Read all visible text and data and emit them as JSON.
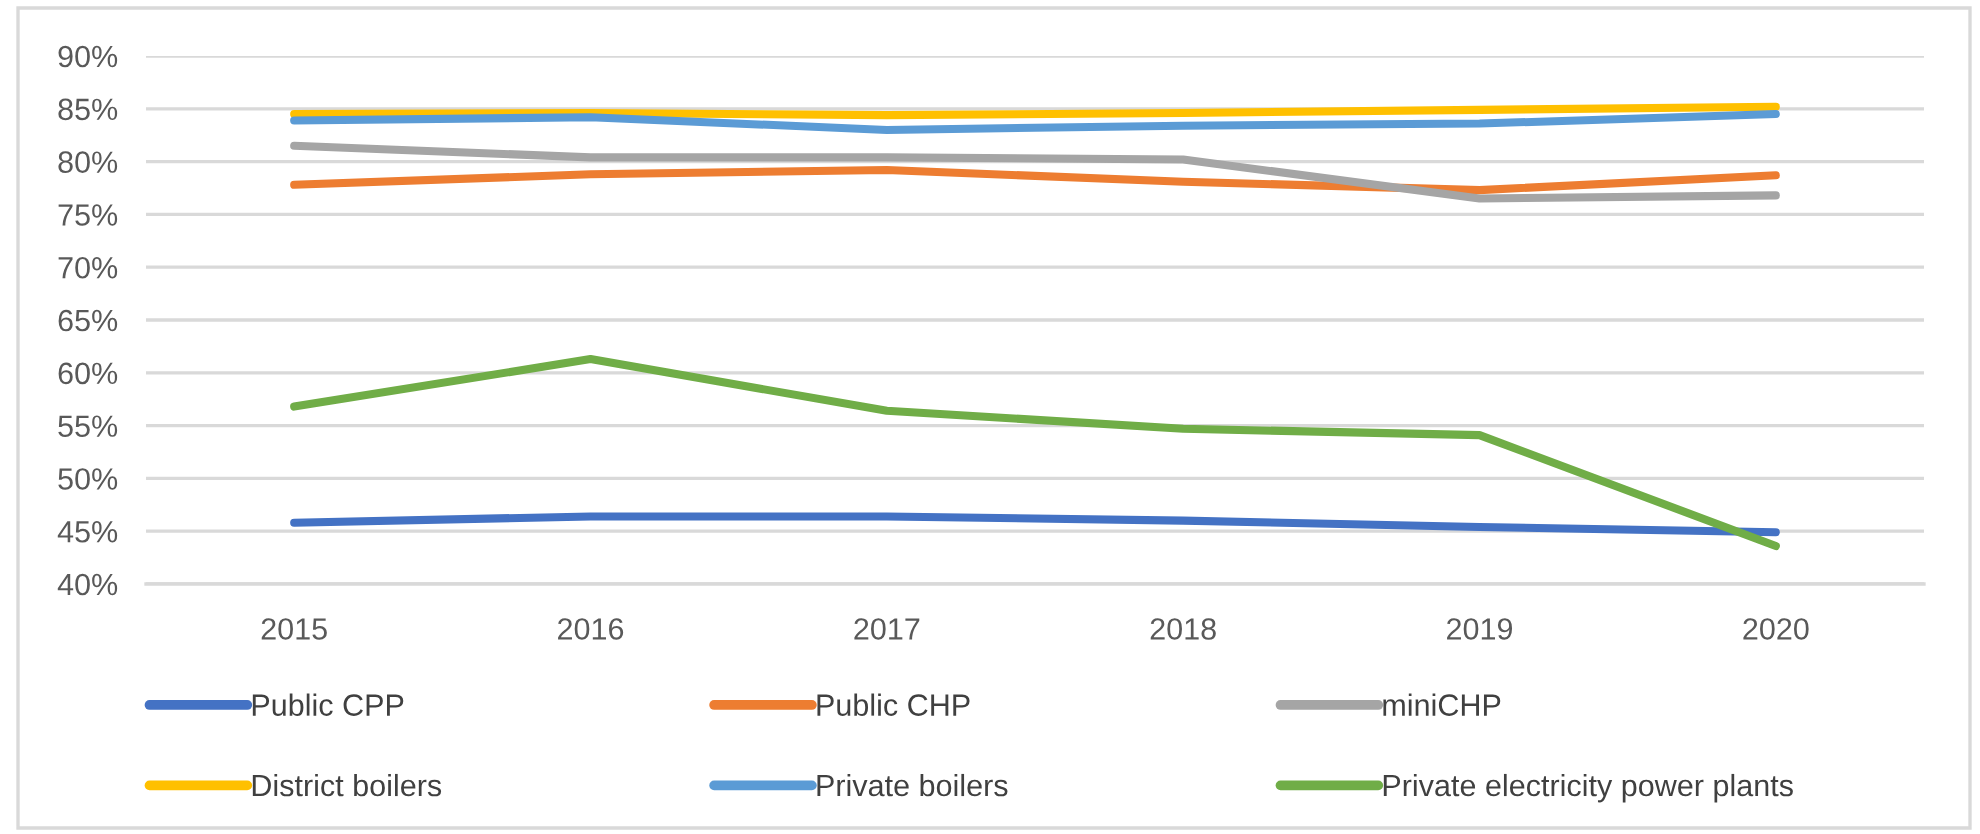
{
  "chart_data": {
    "type": "line",
    "categories": [
      "2015",
      "2016",
      "2017",
      "2018",
      "2019",
      "2020"
    ],
    "series": [
      {
        "name": "Public CPP",
        "color": "#4472c4",
        "values": [
          45.8,
          46.4,
          46.4,
          46.0,
          45.4,
          44.9
        ]
      },
      {
        "name": "Public CHP",
        "color": "#ed7d31",
        "values": [
          77.8,
          78.8,
          79.2,
          78.1,
          77.3,
          78.7
        ]
      },
      {
        "name": "miniCHP",
        "color": "#a5a5a5",
        "values": [
          81.5,
          80.4,
          80.4,
          80.2,
          76.5,
          76.8
        ]
      },
      {
        "name": "District boilers",
        "color": "#ffc000",
        "values": [
          84.5,
          84.6,
          84.4,
          84.6,
          84.9,
          85.2
        ]
      },
      {
        "name": "Private boilers",
        "color": "#5b9bd5",
        "values": [
          83.9,
          84.2,
          83.0,
          83.4,
          83.6,
          84.5
        ]
      },
      {
        "name": "Private electricity power plants",
        "color": "#70ad47",
        "values": [
          56.8,
          61.3,
          56.4,
          54.7,
          54.1,
          43.6
        ]
      }
    ],
    "ylim": [
      40,
      90
    ],
    "yticks": [
      {
        "value": 40,
        "label": "40%"
      },
      {
        "value": 45,
        "label": "45%"
      },
      {
        "value": 50,
        "label": "50%"
      },
      {
        "value": 55,
        "label": "55%"
      },
      {
        "value": 60,
        "label": "60%"
      },
      {
        "value": 65,
        "label": "65%"
      },
      {
        "value": 70,
        "label": "70%"
      },
      {
        "value": 75,
        "label": "75%"
      },
      {
        "value": 80,
        "label": "80%"
      },
      {
        "value": 85,
        "label": "85%"
      },
      {
        "value": 90,
        "label": "90%"
      }
    ],
    "grid": "y",
    "legend": "bottom",
    "marker": "none",
    "line_style": "solid"
  }
}
